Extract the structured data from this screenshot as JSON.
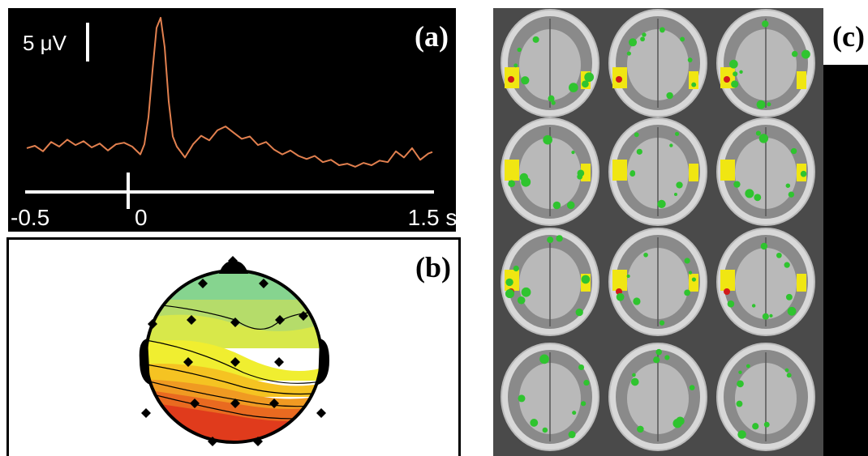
{
  "chart_data": {
    "type": "line",
    "panel_label": "(a)",
    "color": "#e2804f",
    "scale_bar": {
      "value": 5,
      "label": "5 μV"
    },
    "xlim": [
      -0.5,
      1.5
    ],
    "xticks": [
      -0.5,
      0,
      {
        "value": 1.5,
        "label": "1.5 s"
      }
    ],
    "ylim": [
      -7,
      17
    ],
    "x": [
      -0.5,
      -0.46,
      -0.42,
      -0.38,
      -0.34,
      -0.3,
      -0.26,
      -0.22,
      -0.18,
      -0.14,
      -0.1,
      -0.06,
      -0.02,
      0.02,
      0.06,
      0.08,
      0.1,
      0.12,
      0.14,
      0.16,
      0.18,
      0.2,
      0.22,
      0.24,
      0.28,
      0.32,
      0.36,
      0.4,
      0.44,
      0.48,
      0.52,
      0.56,
      0.6,
      0.64,
      0.68,
      0.72,
      0.76,
      0.8,
      0.84,
      0.88,
      0.92,
      0.96,
      1.0,
      1.04,
      1.08,
      1.12,
      1.16,
      1.2,
      1.24,
      1.28,
      1.32,
      1.36,
      1.4,
      1.44,
      1.48,
      1.5
    ],
    "values": [
      0,
      0.3,
      -0.4,
      0.8,
      0.2,
      1.1,
      0.4,
      0.9,
      0.1,
      0.6,
      -0.3,
      0.5,
      0.7,
      0.2,
      -0.8,
      0.5,
      4,
      10,
      15.5,
      16.8,
      13,
      6,
      1.5,
      0.2,
      -1.2,
      0.5,
      1.6,
      1.0,
      2.3,
      2.8,
      2.0,
      1.2,
      1.5,
      0.4,
      0.8,
      -0.2,
      -0.8,
      -0.3,
      -1.0,
      -1.4,
      -1.0,
      -1.8,
      -1.5,
      -2.2,
      -2.0,
      -2.4,
      -1.9,
      -2.2,
      -1.6,
      -1.8,
      -0.4,
      -1.2,
      0.0,
      -1.5,
      -0.7,
      -0.5
    ]
  },
  "panels": {
    "b": {
      "label": "(b)"
    },
    "c": {
      "label": "(c)"
    }
  }
}
